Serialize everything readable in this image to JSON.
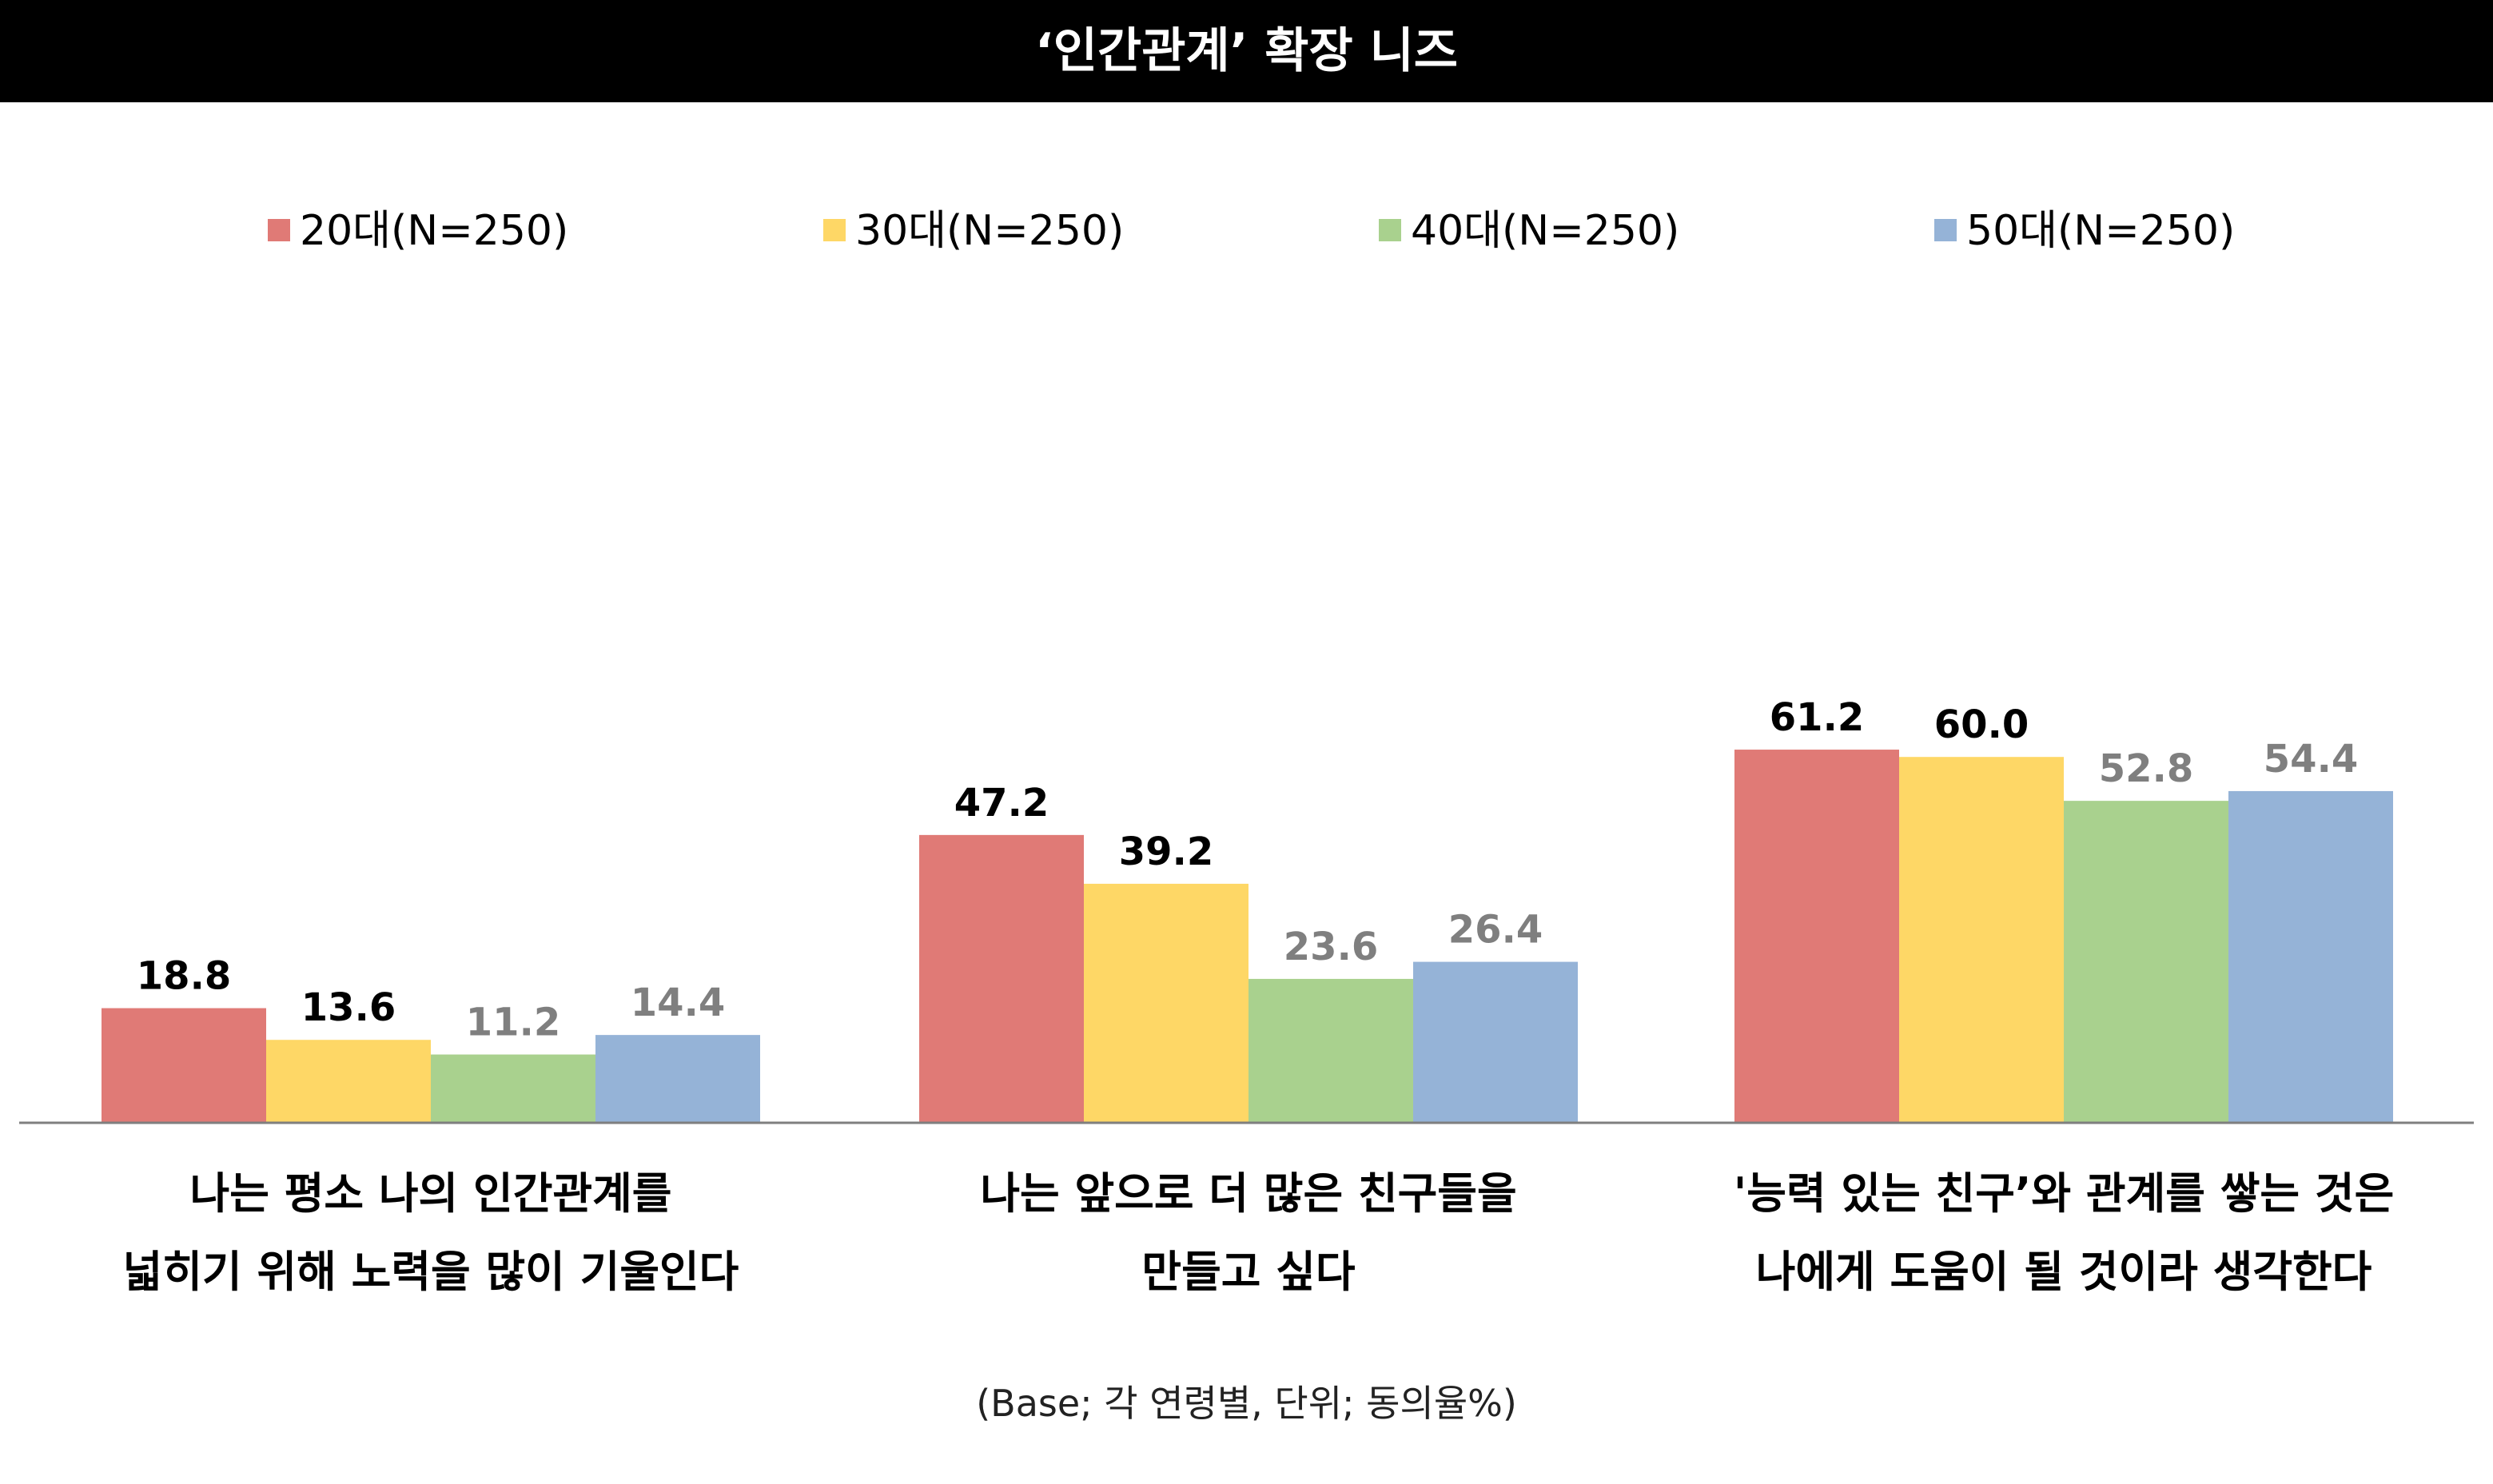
{
  "title": "‘인간관계’ 확장 니즈",
  "footnote": "(Base; 각 연령별, 단위; 동의율%)",
  "colors": {
    "title_bg": "#000000",
    "title_fg": "#ffffff",
    "label_dark": "#000000",
    "label_gray": "#7f7f7f"
  },
  "chart_data": {
    "type": "bar",
    "title": "‘인간관계’ 확장 니즈",
    "legend_position": "top",
    "grid": false,
    "ylim": [
      0,
      70
    ],
    "categories": [
      [
        "나는 평소 나의 인간관계를",
        "넓히기 위해 노력을 많이 기울인다"
      ],
      [
        "나는 앞으로 더 많은 친구들을",
        "만들고 싶다"
      ],
      [
        "'능력 있는 친구’와 관계를 쌓는 것은",
        "나에게 도움이 될 것이라 생각한다"
      ]
    ],
    "series": [
      {
        "name": "20대(N=250)",
        "color": "#e07a76",
        "label_color": "#000000",
        "values": [
          18.8,
          47.2,
          61.2
        ],
        "labels": [
          "18.8",
          "47.2",
          "61.2"
        ]
      },
      {
        "name": "30대(N=250)",
        "color": "#fed766",
        "label_color": "#000000",
        "values": [
          13.6,
          39.2,
          60.0
        ],
        "labels": [
          "13.6",
          "39.2",
          "60.0"
        ]
      },
      {
        "name": "40대(N=250)",
        "color": "#a9d18e",
        "label_color": "#7f7f7f",
        "values": [
          11.2,
          23.6,
          52.8
        ],
        "labels": [
          "11.2",
          "23.6",
          "52.8"
        ]
      },
      {
        "name": "50대(N=250)",
        "color": "#95b3d7",
        "label_color": "#7f7f7f",
        "values": [
          14.4,
          26.4,
          54.4
        ],
        "labels": [
          "14.4",
          "26.4",
          "54.4"
        ]
      }
    ]
  }
}
